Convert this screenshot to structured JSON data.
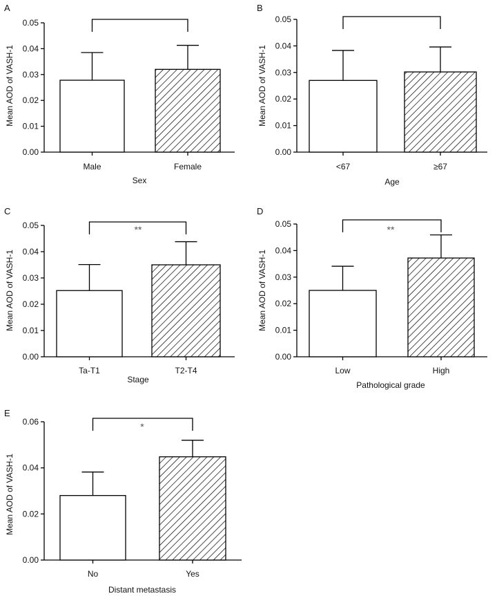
{
  "figure": {
    "ylabel": "Mean AOD of VASH-1"
  },
  "chart_data": [
    {
      "type": "bar",
      "panel": "A",
      "title": "",
      "categories": [
        "Male",
        "Female"
      ],
      "values": [
        0.0278,
        0.032
      ],
      "errors": [
        0.0107,
        0.0093
      ],
      "bar_patterns": [
        "open",
        "hatched"
      ],
      "xlabel": "Sex",
      "ylabel": "Mean AOD of VASH-1",
      "ylim": [
        0,
        0.05
      ],
      "yticks": [
        "0.00",
        "0.01",
        "0.02",
        "0.03",
        "0.04",
        "0.05"
      ],
      "significance": "",
      "grid": false
    },
    {
      "type": "bar",
      "panel": "B",
      "title": "",
      "categories": [
        "<67",
        "≥67"
      ],
      "values": [
        0.027,
        0.0302
      ],
      "errors": [
        0.0113,
        0.0094
      ],
      "bar_patterns": [
        "open",
        "hatched"
      ],
      "xlabel": "Age",
      "ylabel": "Mean AOD of VASH-1",
      "ylim": [
        0,
        0.05
      ],
      "yticks": [
        "0.00",
        "0.01",
        "0.02",
        "0.03",
        "0.04",
        "0.05"
      ],
      "significance": "",
      "grid": false
    },
    {
      "type": "bar",
      "panel": "C",
      "title": "",
      "categories": [
        "Ta-T1",
        "T2-T4"
      ],
      "values": [
        0.0252,
        0.035
      ],
      "errors": [
        0.0099,
        0.0088
      ],
      "bar_patterns": [
        "open",
        "hatched"
      ],
      "xlabel": "Stage",
      "ylabel": "Mean AOD of VASH-1",
      "ylim": [
        0,
        0.05
      ],
      "yticks": [
        "0.00",
        "0.01",
        "0.02",
        "0.03",
        "0.04",
        "0.05"
      ],
      "significance": "**",
      "grid": false
    },
    {
      "type": "bar",
      "panel": "D",
      "title": "",
      "categories": [
        "Low",
        "High"
      ],
      "values": [
        0.025,
        0.0372
      ],
      "errors": [
        0.0091,
        0.0087
      ],
      "bar_patterns": [
        "open",
        "hatched"
      ],
      "xlabel": "Pathological grade",
      "ylabel": "Mean AOD of VASH-1",
      "ylim": [
        0,
        0.05
      ],
      "yticks": [
        "0.00",
        "0.01",
        "0.02",
        "0.03",
        "0.04",
        "0.05"
      ],
      "significance": "**",
      "grid": false
    },
    {
      "type": "bar",
      "panel": "E",
      "title": "",
      "categories": [
        "No",
        "Yes"
      ],
      "values": [
        0.028,
        0.0448
      ],
      "errors": [
        0.0102,
        0.0072
      ],
      "bar_patterns": [
        "open",
        "hatched"
      ],
      "xlabel": "Distant metastasis",
      "ylabel": "Mean AOD of VASH-1",
      "ylim": [
        0,
        0.06
      ],
      "yticks": [
        "0.00",
        "0.02",
        "0.04",
        "0.06"
      ],
      "significance": "*",
      "grid": false
    }
  ]
}
